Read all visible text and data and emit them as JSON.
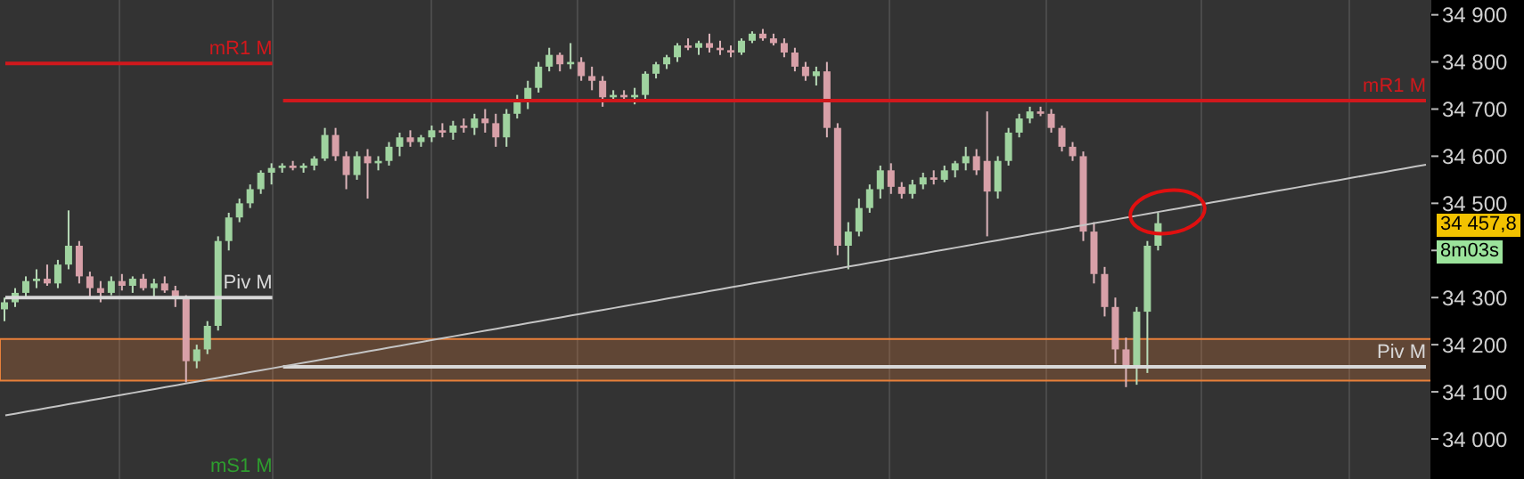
{
  "chart_data": {
    "type": "candlestick",
    "categories": [
      null,
      null,
      null,
      null,
      null,
      null,
      null,
      null,
      null,
      null,
      null,
      null,
      null,
      null,
      null,
      null,
      null,
      null,
      null,
      null,
      null,
      null,
      null,
      null,
      null,
      null,
      null,
      null,
      null,
      null,
      null,
      null,
      null,
      null,
      null,
      null,
      null,
      null,
      null,
      null,
      null,
      null,
      null,
      null,
      null,
      null,
      null,
      null,
      null,
      null,
      null,
      null,
      null,
      null,
      null,
      null,
      null,
      null,
      null,
      null,
      null,
      null,
      null,
      null,
      null,
      null,
      null,
      null,
      null,
      null,
      null,
      null,
      null,
      null,
      null,
      null,
      null,
      null,
      null,
      null,
      null,
      null,
      null,
      null,
      null,
      null,
      null,
      null,
      null,
      null,
      null,
      null,
      null,
      null,
      null,
      null,
      null,
      null,
      null,
      null,
      null,
      null,
      null,
      null,
      null,
      null,
      null,
      null,
      null,
      null,
      null,
      null,
      null,
      null,
      null,
      null,
      null,
      null,
      null,
      null,
      null,
      null,
      null,
      null,
      null,
      null,
      null,
      null,
      null,
      null,
      null,
      null,
      null,
      null
    ],
    "ohlc": [
      [
        34275,
        34300,
        34250,
        34290
      ],
      [
        34290,
        34320,
        34280,
        34310
      ],
      [
        34310,
        34345,
        34300,
        34335
      ],
      [
        34335,
        34360,
        34320,
        34340
      ],
      [
        34340,
        34370,
        34325,
        34330
      ],
      [
        34330,
        34380,
        34320,
        34370
      ],
      [
        34370,
        34485,
        34360,
        34410
      ],
      [
        34410,
        34420,
        34330,
        34345
      ],
      [
        34345,
        34355,
        34300,
        34320
      ],
      [
        34320,
        34335,
        34290,
        34310
      ],
      [
        34310,
        34345,
        34305,
        34335
      ],
      [
        34335,
        34350,
        34315,
        34325
      ],
      [
        34325,
        34345,
        34310,
        34340
      ],
      [
        34340,
        34350,
        34315,
        34320
      ],
      [
        34320,
        34340,
        34300,
        34330
      ],
      [
        34330,
        34345,
        34310,
        34315
      ],
      [
        34315,
        34325,
        34280,
        34300
      ],
      [
        34300,
        34305,
        34120,
        34165
      ],
      [
        34165,
        34200,
        34150,
        34190
      ],
      [
        34190,
        34250,
        34180,
        34240
      ],
      [
        34240,
        34430,
        34230,
        34420
      ],
      [
        34420,
        34480,
        34400,
        34470
      ],
      [
        34470,
        34510,
        34460,
        34500
      ],
      [
        34500,
        34540,
        34490,
        34530
      ],
      [
        34530,
        34570,
        34520,
        34565
      ],
      [
        34565,
        34585,
        34540,
        34575
      ],
      [
        34575,
        34585,
        34565,
        34580
      ],
      [
        34580,
        34590,
        34570,
        34575
      ],
      [
        34575,
        34585,
        34565,
        34580
      ],
      [
        34580,
        34600,
        34570,
        34595
      ],
      [
        34595,
        34660,
        34590,
        34645
      ],
      [
        34645,
        34660,
        34590,
        34600
      ],
      [
        34600,
        34610,
        34530,
        34560
      ],
      [
        34560,
        34610,
        34550,
        34600
      ],
      [
        34600,
        34615,
        34510,
        34585
      ],
      [
        34585,
        34600,
        34570,
        34590
      ],
      [
        34590,
        34630,
        34580,
        34620
      ],
      [
        34620,
        34650,
        34600,
        34640
      ],
      [
        34640,
        34655,
        34620,
        34630
      ],
      [
        34630,
        34645,
        34620,
        34640
      ],
      [
        34640,
        34665,
        34630,
        34655
      ],
      [
        34655,
        34670,
        34640,
        34650
      ],
      [
        34650,
        34675,
        34635,
        34665
      ],
      [
        34665,
        34680,
        34650,
        34660
      ],
      [
        34660,
        34690,
        34645,
        34680
      ],
      [
        34680,
        34700,
        34650,
        34670
      ],
      [
        34670,
        34690,
        34620,
        34640
      ],
      [
        34640,
        34700,
        34620,
        34690
      ],
      [
        34690,
        34730,
        34680,
        34720
      ],
      [
        34720,
        34760,
        34700,
        34745
      ],
      [
        34745,
        34800,
        34735,
        34790
      ],
      [
        34790,
        34830,
        34780,
        34815
      ],
      [
        34815,
        34820,
        34780,
        34795
      ],
      [
        34795,
        34840,
        34785,
        34800
      ],
      [
        34800,
        34810,
        34760,
        34770
      ],
      [
        34770,
        34790,
        34740,
        34760
      ],
      [
        34760,
        34770,
        34705,
        34725
      ],
      [
        34725,
        34740,
        34715,
        34730
      ],
      [
        34730,
        34740,
        34715,
        34725
      ],
      [
        34725,
        34745,
        34710,
        34730
      ],
      [
        34730,
        34780,
        34720,
        34775
      ],
      [
        34775,
        34800,
        34765,
        34795
      ],
      [
        34795,
        34815,
        34785,
        34810
      ],
      [
        34810,
        34840,
        34800,
        34835
      ],
      [
        34835,
        34850,
        34825,
        34830
      ],
      [
        34830,
        34845,
        34815,
        34840
      ],
      [
        34840,
        34860,
        34820,
        34830
      ],
      [
        34830,
        34845,
        34815,
        34825
      ],
      [
        34825,
        34835,
        34810,
        34820
      ],
      [
        34820,
        34850,
        34815,
        34845
      ],
      [
        34845,
        34865,
        34840,
        34860
      ],
      [
        34860,
        34870,
        34845,
        34850
      ],
      [
        34850,
        34860,
        34835,
        34840
      ],
      [
        34840,
        34850,
        34810,
        34820
      ],
      [
        34820,
        34830,
        34780,
        34790
      ],
      [
        34790,
        34800,
        34760,
        34770
      ],
      [
        34770,
        34790,
        34750,
        34780
      ],
      [
        34780,
        34800,
        34640,
        34660
      ],
      [
        34660,
        34670,
        34390,
        34410
      ],
      [
        34410,
        34460,
        34360,
        34440
      ],
      [
        34440,
        34510,
        34430,
        34490
      ],
      [
        34490,
        34540,
        34480,
        34530
      ],
      [
        34530,
        34580,
        34510,
        34570
      ],
      [
        34570,
        34585,
        34520,
        34535
      ],
      [
        34535,
        34545,
        34510,
        34520
      ],
      [
        34520,
        34550,
        34510,
        34540
      ],
      [
        34540,
        34565,
        34530,
        34555
      ],
      [
        34555,
        34570,
        34540,
        34550
      ],
      [
        34550,
        34580,
        34545,
        34570
      ],
      [
        34570,
        34590,
        34555,
        34585
      ],
      [
        34585,
        34620,
        34570,
        34600
      ],
      [
        34600,
        34615,
        34560,
        34570
      ],
      [
        34590,
        34695,
        34430,
        34525
      ],
      [
        34525,
        34600,
        34510,
        34590
      ],
      [
        34590,
        34660,
        34580,
        34650
      ],
      [
        34650,
        34690,
        34640,
        34680
      ],
      [
        34680,
        34705,
        34670,
        34695
      ],
      [
        34695,
        34705,
        34685,
        34690
      ],
      [
        34690,
        34700,
        34650,
        34660
      ],
      [
        34660,
        34665,
        34610,
        34620
      ],
      [
        34620,
        34630,
        34590,
        34600
      ],
      [
        34600,
        34610,
        34420,
        34440
      ],
      [
        34440,
        34460,
        34330,
        34350
      ],
      [
        34350,
        34365,
        34260,
        34280
      ],
      [
        34280,
        34300,
        34160,
        34190
      ],
      [
        34190,
        34215,
        34110,
        34150
      ],
      [
        34150,
        34280,
        34115,
        34270
      ],
      [
        34270,
        34420,
        34140,
        34410
      ],
      [
        34410,
        34480,
        34400,
        34457.8
      ],
      null,
      null,
      null,
      null,
      null,
      null,
      null,
      null,
      null,
      null,
      null,
      null,
      null,
      null,
      null,
      null,
      null,
      null,
      null,
      null,
      null,
      null,
      null,
      null,
      null
    ],
    "series": [
      {
        "name": "mR1 M",
        "type": "line",
        "color": "#d0181c",
        "values": [
          34797,
          34797,
          34797,
          34797,
          34797,
          34797,
          34797,
          34797,
          34797,
          34797,
          34797,
          34797,
          34797,
          34797,
          34797,
          34797,
          34797,
          34797,
          34797,
          34797,
          34797,
          34797,
          34797,
          34797,
          34797,
          34797,
          null,
          null,
          null,
          null,
          null,
          null,
          null,
          null,
          null,
          null,
          null,
          null,
          null,
          null,
          null,
          null,
          null,
          null,
          null,
          null,
          null,
          null,
          null,
          null,
          null,
          null,
          null,
          null,
          null,
          null,
          null,
          null,
          null,
          null,
          null,
          null,
          null,
          null,
          null,
          null,
          null,
          null,
          null,
          null,
          null,
          null,
          null,
          null,
          null,
          null,
          null,
          null,
          null,
          null,
          null,
          null,
          null,
          null,
          null,
          null,
          null,
          null,
          null,
          null,
          null,
          null,
          null,
          null,
          null,
          null,
          null,
          null,
          null,
          null,
          null,
          null,
          null,
          null,
          null,
          null,
          null,
          null,
          null,
          null,
          null,
          null,
          null,
          null,
          null,
          null,
          null,
          null,
          null,
          null,
          null,
          null,
          null,
          null,
          null,
          null,
          null,
          null,
          null,
          null,
          null,
          null,
          null,
          null
        ]
      },
      {
        "name": "mR1 M",
        "type": "line",
        "color": "#d0181c",
        "values": [
          null,
          null,
          null,
          null,
          null,
          null,
          null,
          null,
          null,
          null,
          null,
          null,
          null,
          null,
          null,
          null,
          null,
          null,
          null,
          null,
          null,
          null,
          null,
          null,
          null,
          null,
          34718,
          34718,
          34718,
          34718,
          34718,
          34718,
          34718,
          34718,
          34718,
          34718,
          34718,
          34718,
          34718,
          34718,
          34718,
          34718,
          34718,
          34718,
          34718,
          34718,
          34718,
          34718,
          34718,
          34718,
          34718,
          34718,
          34718,
          34718,
          34718,
          34718,
          34718,
          34718,
          34718,
          34718,
          34718,
          34718,
          34718,
          34718,
          34718,
          34718,
          34718,
          34718,
          34718,
          34718,
          34718,
          34718,
          34718,
          34718,
          34718,
          34718,
          34718,
          34718,
          34718,
          34718,
          34718,
          34718,
          34718,
          34718,
          34718,
          34718,
          34718,
          34718,
          34718,
          34718,
          34718,
          34718,
          34718,
          34718,
          34718,
          34718,
          34718,
          34718,
          34718,
          34718,
          34718,
          34718,
          34718,
          34718,
          34718,
          34718,
          34718,
          34718,
          34718,
          34718,
          34718,
          34718,
          34718,
          34718,
          34718,
          34718,
          34718,
          34718,
          34718,
          34718,
          34718,
          34718,
          34718,
          34718,
          34718,
          34718,
          34718,
          34718,
          34718,
          34718,
          34718,
          34718,
          34718,
          34718
        ]
      },
      {
        "name": "Piv M",
        "type": "line",
        "color": "#d8d8d8",
        "values": [
          34300,
          34300,
          34300,
          34300,
          34300,
          34300,
          34300,
          34300,
          34300,
          34300,
          34300,
          34300,
          34300,
          34300,
          34300,
          34300,
          34300,
          34300,
          34300,
          34300,
          34300,
          34300,
          34300,
          34300,
          34300,
          34300,
          null,
          null,
          null,
          null,
          null,
          null,
          null,
          null,
          null,
          null,
          null,
          null,
          null,
          null,
          null,
          null,
          null,
          null,
          null,
          null,
          null,
          null,
          null,
          null,
          null,
          null,
          null,
          null,
          null,
          null,
          null,
          null,
          null,
          null,
          null,
          null,
          null,
          null,
          null,
          null,
          null,
          null,
          null,
          null,
          null,
          null,
          null,
          null,
          null,
          null,
          null,
          null,
          null,
          null,
          null,
          null,
          null,
          null,
          null,
          null,
          null,
          null,
          null,
          null,
          null,
          null,
          null,
          null,
          null,
          null,
          null,
          null,
          null,
          null,
          null,
          null,
          null,
          null,
          null,
          null,
          null,
          null,
          null,
          null,
          null,
          null,
          null,
          null,
          null,
          null,
          null,
          null,
          null,
          null,
          null,
          null,
          null,
          null,
          null,
          null,
          null,
          null,
          null,
          null,
          null,
          null,
          null,
          null
        ]
      },
      {
        "name": "Piv M",
        "type": "line",
        "color": "#d8d8d8",
        "values": [
          null,
          null,
          null,
          null,
          null,
          null,
          null,
          null,
          null,
          null,
          null,
          null,
          null,
          null,
          null,
          null,
          null,
          null,
          null,
          null,
          null,
          null,
          null,
          null,
          null,
          null,
          34153,
          34153,
          34153,
          34153,
          34153,
          34153,
          34153,
          34153,
          34153,
          34153,
          34153,
          34153,
          34153,
          34153,
          34153,
          34153,
          34153,
          34153,
          34153,
          34153,
          34153,
          34153,
          34153,
          34153,
          34153,
          34153,
          34153,
          34153,
          34153,
          34153,
          34153,
          34153,
          34153,
          34153,
          34153,
          34153,
          34153,
          34153,
          34153,
          34153,
          34153,
          34153,
          34153,
          34153,
          34153,
          34153,
          34153,
          34153,
          34153,
          34153,
          34153,
          34153,
          34153,
          34153,
          34153,
          34153,
          34153,
          34153,
          34153,
          34153,
          34153,
          34153,
          34153,
          34153,
          34153,
          34153,
          34153,
          34153,
          34153,
          34153,
          34153,
          34153,
          34153,
          34153,
          34153,
          34153,
          34153,
          34153,
          34153,
          34153,
          34153,
          34153,
          34153,
          34153,
          34153,
          34153,
          34153,
          34153,
          34153,
          34153,
          34153,
          34153,
          34153,
          34153,
          34153,
          34153,
          34153,
          34153,
          34153,
          34153,
          34153,
          34153,
          34153,
          34153,
          34153,
          34153,
          34153,
          34153
        ]
      },
      {
        "type": "line",
        "color": "#c4c4c4",
        "values": [
          34050,
          34054,
          34058,
          34062,
          34066,
          34070,
          34074,
          34078,
          34082,
          34086,
          34090,
          34094,
          34098,
          34102,
          34106,
          34110,
          34114,
          34118,
          34122,
          34126,
          34130,
          34134,
          34138,
          34142,
          34146,
          34150,
          34154,
          34158,
          34162,
          34166,
          34170,
          34174,
          34178,
          34182,
          34186,
          34190,
          34194,
          34198,
          34202,
          34206,
          34210,
          34214,
          34218,
          34222,
          34226,
          34230,
          34234,
          34238,
          34242,
          34246,
          34250,
          34254,
          34258,
          34262,
          34266,
          34270,
          34274,
          34278,
          34282,
          34286,
          34290,
          34294,
          34298,
          34302,
          34306,
          34310,
          34314,
          34318,
          34322,
          34326,
          34330,
          34334,
          34338,
          34342,
          34346,
          34350,
          34354,
          34358,
          34362,
          34366,
          34370,
          34374,
          34378,
          34382,
          34386,
          34390,
          34394,
          34398,
          34402,
          34406,
          34410,
          34414,
          34418,
          34422,
          34426,
          34430,
          34434,
          34438,
          34442,
          34446,
          34450,
          34454,
          34458,
          34462,
          34466,
          34470,
          34474,
          34478,
          34482,
          34486,
          34490,
          34494,
          34498,
          34502,
          34506,
          34510,
          34514,
          34518,
          34522,
          34526,
          34530,
          34534,
          34538,
          34542,
          34546,
          34550,
          34554,
          34558,
          34562,
          34566,
          34570,
          34574,
          34578,
          34582
        ]
      }
    ],
    "bands": [
      {
        "axis": "y",
        "from": 34124,
        "to": 34212,
        "color": "#e8803a"
      }
    ],
    "annotations": [
      "mS1 M",
      "34 457,8",
      "8m03s"
    ],
    "ylim": [
      33915,
      34905
    ],
    "yticks": [
      {
        "value": 34000,
        "label": "34 000"
      },
      {
        "value": 34100,
        "label": "34 100"
      },
      {
        "value": 34200,
        "label": "34 200"
      },
      {
        "value": 34300,
        "label": "34 300"
      },
      {
        "value": 34400,
        "label": null
      },
      {
        "value": 34500,
        "label": "34 500"
      },
      {
        "value": 34600,
        "label": "34 600"
      },
      {
        "value": 34700,
        "label": "34 700"
      },
      {
        "value": 34800,
        "label": "34 800"
      },
      {
        "value": 34900,
        "label": "34 900"
      }
    ],
    "tick_labels": "y"
  }
}
